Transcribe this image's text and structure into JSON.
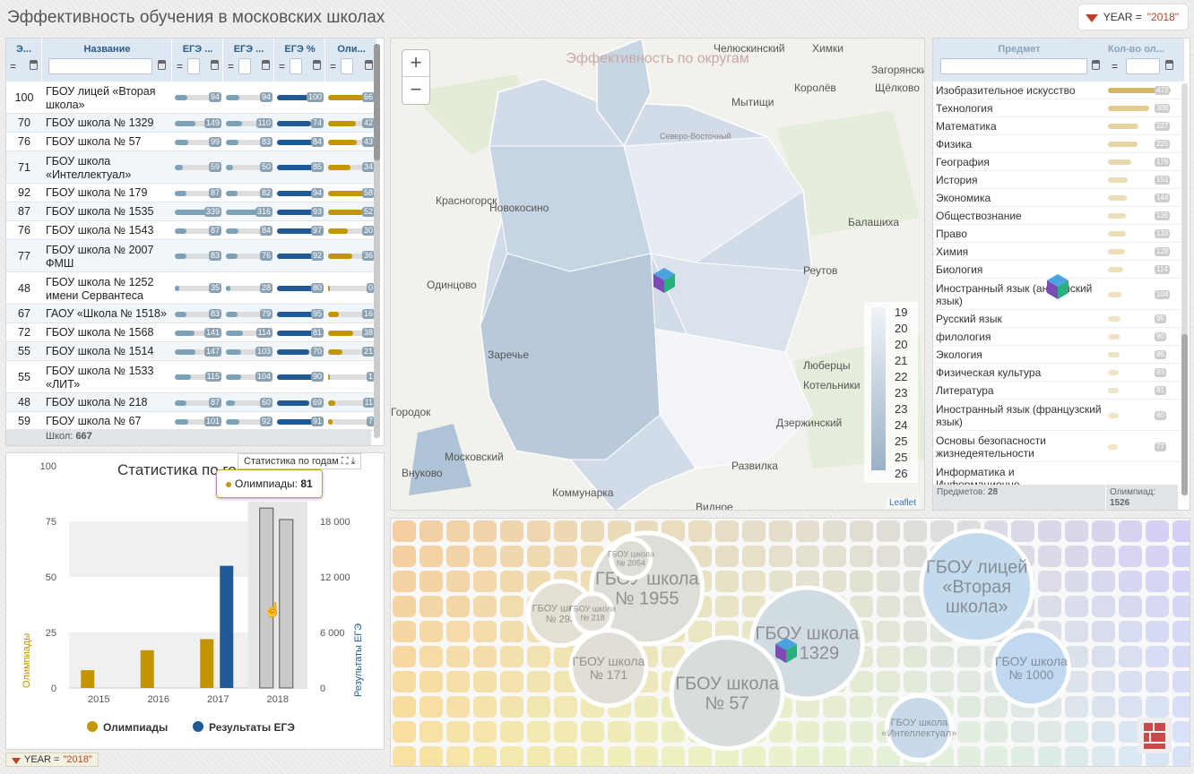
{
  "app_title": "Эффективность обучения в московских школах",
  "filter": {
    "label": "YEAR = ",
    "value": "\"2018\""
  },
  "schools_table": {
    "columns": [
      "Э...",
      "Название",
      "ЕГЭ ...",
      "ЕГЭ ...",
      "ЕГЭ %",
      "Оли..."
    ],
    "rows": [
      {
        "v": "100",
        "name": "ГБОУ лицей «Вторая школа»",
        "a": 94,
        "b": 94,
        "c": 100,
        "d": 66
      },
      {
        "v": "70",
        "name": "ГБОУ школа № 1329",
        "a": 149,
        "b": 110,
        "c": 74,
        "d": 42
      },
      {
        "v": "76",
        "name": "ГБОУ школа № 57",
        "a": 99,
        "b": 83,
        "c": 84,
        "d": 43
      },
      {
        "v": "71",
        "name": "ГБОУ школа «Интеллектуал»",
        "a": 59,
        "b": 50,
        "c": 85,
        "d": 34
      },
      {
        "v": "92",
        "name": "ГБОУ школа № 179",
        "a": 87,
        "b": 82,
        "c": 94,
        "d": 58
      },
      {
        "v": "87",
        "name": "ГБОУ школа № 1535",
        "a": 339,
        "b": 316,
        "c": 93,
        "d": 52
      },
      {
        "v": "76",
        "name": "ГБОУ школа № 1543",
        "a": 87,
        "b": 84,
        "c": 97,
        "d": 30
      },
      {
        "v": "77",
        "name": "ГБОУ школа № 2007 ФМШ",
        "a": 83,
        "b": 76,
        "c": 92,
        "d": 36
      },
      {
        "v": "48",
        "name": "ГБОУ школа № 1252 имени Сервантеса",
        "a": 35,
        "b": 28,
        "c": 80,
        "d": 0
      },
      {
        "v": "67",
        "name": "ГАОУ «Школа № 1518»",
        "a": 83,
        "b": 79,
        "c": 95,
        "d": 16
      },
      {
        "v": "72",
        "name": "ГБОУ школа № 1568",
        "a": 141,
        "b": 114,
        "c": 81,
        "d": 38
      },
      {
        "v": "55",
        "name": "ГБОУ школа № 1514",
        "a": 147,
        "b": 103,
        "c": 70,
        "d": 21
      },
      {
        "v": "55",
        "name": "ГБОУ школа № 1533 «ЛИТ»",
        "a": 115,
        "b": 104,
        "c": 90,
        "d": 1
      },
      {
        "v": "48",
        "name": "ГБОУ школа № 218",
        "a": 87,
        "b": 60,
        "c": 69,
        "d": 11
      },
      {
        "v": "59",
        "name": "ГБОУ школа № 67",
        "a": 101,
        "b": 92,
        "c": 91,
        "d": 7
      }
    ],
    "footer_label": "Школ:",
    "footer_value": "667"
  },
  "chart": {
    "title_header": "Статистика по годам",
    "tooltip_label": "Олимпиады:",
    "tooltip_value": "81"
  },
  "chart_data": {
    "type": "bar",
    "title": "Статистика по годам",
    "categories": [
      "2015",
      "2016",
      "2017",
      "2018"
    ],
    "series": [
      {
        "name": "Олимпиады",
        "axis": "left",
        "color": "#c39500",
        "values": [
          8,
          17,
          22,
          81
        ]
      },
      {
        "name": "Результаты ЕГЭ",
        "axis": "right",
        "color": "#1f5a96",
        "values": [
          null,
          null,
          13200,
          18200
        ]
      }
    ],
    "highlighted_category": "2018",
    "ylabel_left": "Олимпиады",
    "ylabel_right": "Результаты ЕГЭ",
    "ylim_left": [
      0,
      100
    ],
    "yticks_left": [
      "0",
      "25",
      "50",
      "75",
      "100"
    ],
    "ylim_right": [
      0,
      24000
    ],
    "yticks_right": [
      "0",
      "6 000",
      "12 000",
      "18 000"
    ],
    "legend_position": "bottom"
  },
  "map": {
    "title": "Эффективность по округам",
    "zoom_in": "+",
    "zoom_out": "−",
    "attribution": "Leaflet",
    "legend": [
      "19",
      "20",
      "20",
      "21",
      "22",
      "23",
      "23",
      "24",
      "25",
      "25",
      "26"
    ],
    "places": [
      "Челюскинский",
      "Химки",
      "Королёв",
      "Загорянский",
      "Щёлково",
      "Мытищи",
      "Северо-Восточный",
      "Балашиха",
      "Реутов",
      "Красногорск",
      "Новокосино",
      "Одинцово",
      "Люберцы",
      "Котельники",
      "Дзержинский",
      "Развилка",
      "Видное",
      "Коммунарка",
      "Внуково",
      "Московский",
      "Заречье",
      "Городок"
    ]
  },
  "subjects": {
    "col_subject": "Предмет",
    "col_count": "Кол-во ол...",
    "rows": [
      {
        "name": "Изобразительное искусство",
        "value": 473
      },
      {
        "name": "Технология",
        "value": 308
      },
      {
        "name": "Математика",
        "value": 227
      },
      {
        "name": "Физика",
        "value": 225
      },
      {
        "name": "География",
        "value": 176
      },
      {
        "name": "История",
        "value": 151
      },
      {
        "name": "Экономика",
        "value": 144
      },
      {
        "name": "Обществознание",
        "value": 136
      },
      {
        "name": "Право",
        "value": 133
      },
      {
        "name": "Химия",
        "value": 128
      },
      {
        "name": "Биология",
        "value": 114
      },
      {
        "name": "Иностранный язык (английский язык)",
        "value": 104
      },
      {
        "name": "Русский язык",
        "value": 95
      },
      {
        "name": "филология",
        "value": 90
      },
      {
        "name": "Экология",
        "value": 86
      },
      {
        "name": "Физическая культура",
        "value": 83
      },
      {
        "name": "Литература",
        "value": 81
      },
      {
        "name": "Иностранный язык (французский язык)",
        "value": 80
      },
      {
        "name": "Основы безопасности жизнедеятельности",
        "value": 77
      },
      {
        "name": "Информатика и Информационно-",
        "value": null
      }
    ],
    "footer_count_label": "Предметов:",
    "footer_count": "28",
    "footer_olymp_label": "Олимпиад:",
    "footer_olymp": "1526"
  },
  "voronoi": {
    "cells": [
      {
        "label": "ГБОУ школа № 1955",
        "size": "xl",
        "x": 80,
        "y": 70
      },
      {
        "label": "ГБОУ школа № 1329",
        "size": "xl",
        "x": 130,
        "y": 125
      },
      {
        "label": "ГБОУ лицей «Вторая школа»",
        "size": "xl",
        "x": 183,
        "y": 68
      },
      {
        "label": "ГБОУ школа № 57",
        "size": "xl",
        "x": 105,
        "y": 175
      },
      {
        "label": "ГБОУ школа № 171",
        "size": "l",
        "x": 68,
        "y": 150
      },
      {
        "label": "ГБОУ школа № 1000",
        "size": "l",
        "x": 200,
        "y": 150
      },
      {
        "label": "ГБОУ школа «Интеллектуал»",
        "size": "m",
        "x": 165,
        "y": 210
      },
      {
        "label": "ГБОУ школа № 293",
        "size": "m",
        "x": 53,
        "y": 95
      },
      {
        "label": "ГБОУ школа № 218",
        "size": "s",
        "x": 63,
        "y": 95
      },
      {
        "label": "ГБОУ школа № 2054",
        "size": "s",
        "x": 75,
        "y": 40
      }
    ]
  },
  "bottom_filter": {
    "label": "YEAR = ",
    "value": "\"2018\""
  }
}
